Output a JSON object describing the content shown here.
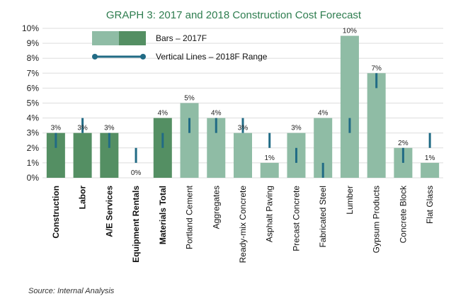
{
  "chart_data": {
    "type": "bar",
    "title": "GRAPH 3: 2017 and 2018 Construction Cost Forecast",
    "categories": [
      "Construction",
      "Labor",
      "A/E Services",
      "Equipment Rentals",
      "Materials Total",
      "Portland Cement",
      "Aggregates",
      "Ready-mix Concrete",
      "Asphalt Paving",
      "Precast Concrete",
      "Fabricated Steel",
      "Lumber",
      "Gypsum Products",
      "Concrete Block",
      "Flat Glass"
    ],
    "bold_categories": [
      "Construction",
      "Labor",
      "A/E Services",
      "Equipment Rentals",
      "Materials Total"
    ],
    "series": [
      {
        "name": "Bars – 2017F",
        "values": [
          3,
          3,
          3,
          0,
          4,
          5,
          4,
          3,
          1,
          3,
          4,
          9.5,
          7,
          2,
          1
        ],
        "data_labels": [
          "3%",
          "3%",
          "3%",
          "0%",
          "4%",
          "5%",
          "4%",
          "3%",
          "1%",
          "3%",
          "4%",
          "10%",
          "7%",
          "2%",
          "1%"
        ],
        "colors": [
          "#548f63",
          "#548f63",
          "#548f63",
          "#548f63",
          "#548f63",
          "#8fbca5",
          "#8fbca5",
          "#8fbca5",
          "#8fbca5",
          "#8fbca5",
          "#8fbca5",
          "#8fbca5",
          "#8fbca5",
          "#8fbca5",
          "#8fbca5"
        ]
      },
      {
        "name": "Vertical Lines – 2018F Range",
        "ranges": [
          [
            2,
            3
          ],
          [
            3,
            4
          ],
          [
            2,
            3
          ],
          [
            1,
            2
          ],
          [
            2,
            3
          ],
          [
            3,
            4
          ],
          [
            3,
            4
          ],
          [
            3,
            4
          ],
          [
            2,
            3
          ],
          [
            1,
            2
          ],
          [
            0,
            1
          ],
          [
            3,
            4
          ],
          [
            6,
            7
          ],
          [
            1,
            2
          ],
          [
            2,
            3
          ]
        ],
        "color": "#216b85"
      }
    ],
    "y_ticks": [
      "0%",
      "1%",
      "2%",
      "3%",
      "4%",
      "5%",
      "6%",
      "7%",
      "8%",
      "9%",
      "10%"
    ],
    "ylim": [
      0,
      10
    ],
    "grid": true,
    "legend_position": "top-left",
    "legend": {
      "bars_label": "Bars – 2017F",
      "lines_label": "Vertical Lines – 2018F Range",
      "bar_colors": [
        "#8fbca5",
        "#548f63"
      ],
      "line_color": "#216b85"
    }
  },
  "source": "Source: Internal Analysis",
  "colors": {
    "title": "#2e7d4f",
    "grid": "#dddddd"
  }
}
